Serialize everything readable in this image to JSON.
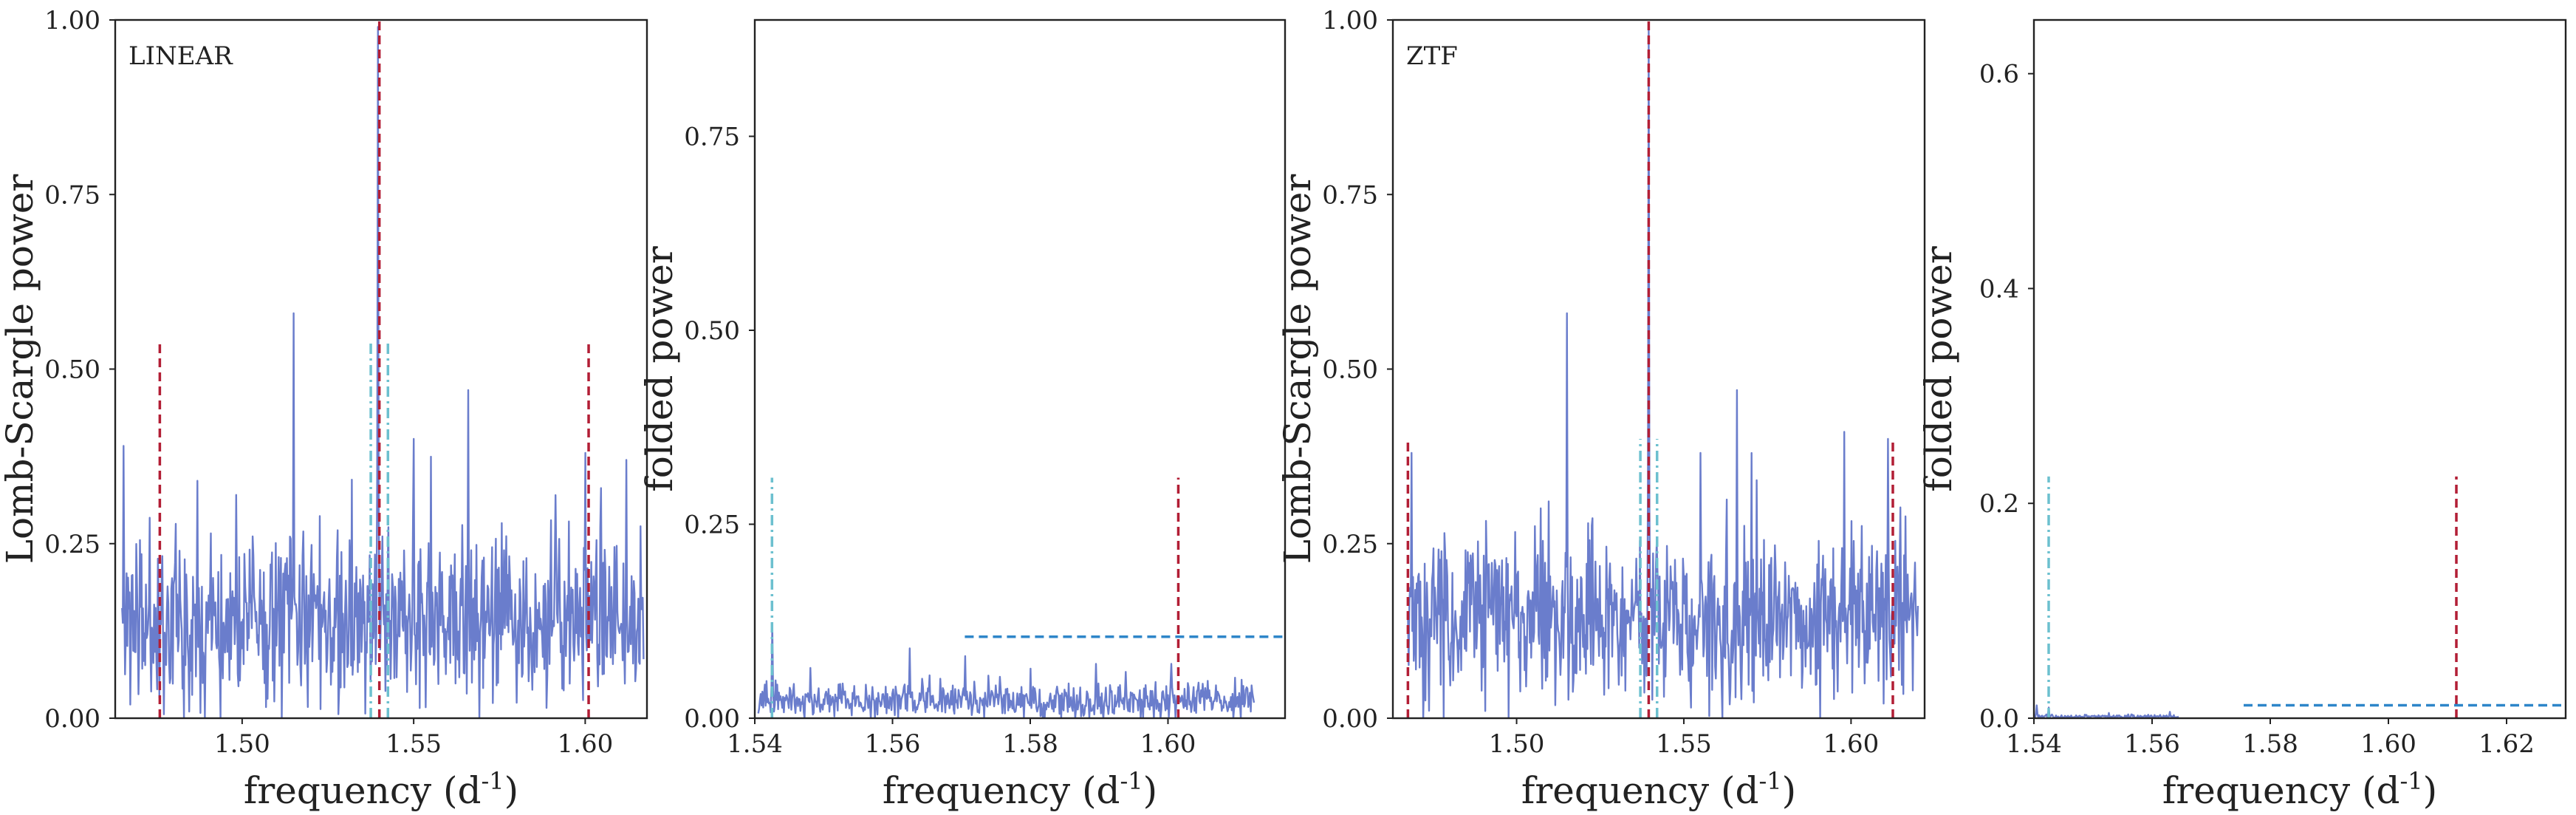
{
  "chart_data": [
    {
      "type": "line",
      "panel_label": "LINEAR",
      "xlabel": "frequency (d$^{-1}$)",
      "ylabel": "Lomb-Scargle power",
      "xlim": [
        1.463,
        1.618
      ],
      "ylim": [
        0,
        1.0
      ],
      "xticks": [
        1.5,
        1.55,
        1.6
      ],
      "xtick_labels": [
        "1.50",
        "1.55",
        "1.60"
      ],
      "yticks": [
        0,
        0.25,
        0.5,
        0.75,
        1.0
      ],
      "ytick_labels": [
        "0.00",
        "0.25",
        "0.50",
        "0.75",
        "1.00"
      ],
      "grid": false,
      "series": [
        {
          "values": {
            "x_range": [
              1.465,
              1.617
            ],
            "base": 0.14,
            "noise": 0.085,
            "n": 700,
            "seed": 11,
            "peaks": [
              [
                1.4655,
                0.39
              ],
              [
                1.515,
                0.58
              ],
              [
                1.5395,
                0.99
              ],
              [
                1.566,
                0.47
              ],
              [
                1.6,
                0.38
              ],
              [
                1.612,
                0.37
              ],
              [
                1.487,
                0.34
              ],
              [
                1.55,
                0.4
              ]
            ]
          },
          "color": "#6a7dcc"
        }
      ],
      "vlines": [
        {
          "x": 1.54,
          "y0": 0.0,
          "y1": 1.0,
          "style": "dashed",
          "color": "#b21e35"
        },
        {
          "x": 1.476,
          "y0": 0.0,
          "y1": 0.54,
          "style": "dashed",
          "color": "#b21e35"
        },
        {
          "x": 1.601,
          "y0": 0.0,
          "y1": 0.54,
          "style": "dashed",
          "color": "#b21e35"
        },
        {
          "x": 1.5375,
          "y0": 0.0,
          "y1": 0.54,
          "style": "dashdot",
          "color": "#6cc0cf"
        },
        {
          "x": 1.5425,
          "y0": 0.0,
          "y1": 0.54,
          "style": "dashdot",
          "color": "#6cc0cf"
        }
      ]
    },
    {
      "type": "line",
      "xlabel": "frequency (d$^{-1}$)",
      "ylabel": "folded power",
      "xlim": [
        1.54,
        1.617
      ],
      "ylim": [
        0,
        0.9
      ],
      "xticks": [
        1.54,
        1.56,
        1.58,
        1.6
      ],
      "xtick_labels": [
        "1.54",
        "1.56",
        "1.58",
        "1.60"
      ],
      "yticks": [
        0,
        0.25,
        0.5,
        0.75
      ],
      "ytick_labels": [
        "0.00",
        "0.25",
        "0.50",
        "0.75"
      ],
      "grid": false,
      "series": [
        {
          "values": {
            "x_range": [
              1.5405,
              1.6125
            ],
            "base": 0.022,
            "noise": 0.016,
            "n": 600,
            "seed": 23,
            "peaks": [
              [
                1.5425,
                0.12
              ],
              [
                1.5625,
                0.09
              ],
              [
                1.5705,
                0.08
              ],
              [
                1.6005,
                0.07
              ],
              [
                1.5895,
                0.07
              ]
            ]
          },
          "color": "#6a7dcc"
        }
      ],
      "hlines": [
        {
          "y": 0.105,
          "x0": 1.5705,
          "x1": 1.617,
          "style": "dashed",
          "color": "#2e86c9"
        }
      ],
      "vlines": [
        {
          "x": 1.6015,
          "y0": 0.0,
          "y1": 0.31,
          "style": "dashed",
          "color": "#b21e35"
        },
        {
          "x": 1.5425,
          "y0": 0.0,
          "y1": 0.31,
          "style": "dashdot",
          "color": "#6cc0cf"
        }
      ]
    },
    {
      "type": "line",
      "panel_label": "ZTF",
      "xlabel": "frequency (d$^{-1}$)",
      "ylabel": "Lomb-Scargle power",
      "xlim": [
        1.463,
        1.622
      ],
      "ylim": [
        0,
        1.0
      ],
      "xticks": [
        1.5,
        1.55,
        1.6
      ],
      "xtick_labels": [
        "1.50",
        "1.55",
        "1.60"
      ],
      "yticks": [
        0,
        0.25,
        0.5,
        0.75,
        1.0
      ],
      "ytick_labels": [
        "0.00",
        "0.25",
        "0.50",
        "0.75",
        "1.00"
      ],
      "grid": false,
      "series": [
        {
          "values": {
            "x_range": [
              1.4675,
              1.62
            ],
            "base": 0.14,
            "noise": 0.085,
            "n": 700,
            "seed": 37,
            "peaks": [
              [
                1.4685,
                0.38
              ],
              [
                1.515,
                0.58
              ],
              [
                1.5395,
                0.99
              ],
              [
                1.566,
                0.47
              ],
              [
                1.598,
                0.41
              ],
              [
                1.611,
                0.4
              ],
              [
                1.555,
                0.38
              ]
            ]
          },
          "color": "#6a7dcc"
        }
      ],
      "vlines": [
        {
          "x": 1.5395,
          "y0": 0.0,
          "y1": 1.0,
          "style": "dashed",
          "color": "#b21e35"
        },
        {
          "x": 1.4675,
          "y0": 0.0,
          "y1": 0.4,
          "style": "dashed",
          "color": "#b21e35"
        },
        {
          "x": 1.6125,
          "y0": 0.0,
          "y1": 0.4,
          "style": "dashed",
          "color": "#b21e35"
        },
        {
          "x": 1.537,
          "y0": 0.0,
          "y1": 0.4,
          "style": "dashdot",
          "color": "#6cc0cf"
        },
        {
          "x": 1.542,
          "y0": 0.0,
          "y1": 0.4,
          "style": "dashdot",
          "color": "#6cc0cf"
        }
      ]
    },
    {
      "type": "line",
      "xlabel": "frequency (d$^{-1}$)",
      "ylabel": "folded power",
      "xlim": [
        1.54,
        1.63
      ],
      "ylim": [
        0,
        0.65
      ],
      "xticks": [
        1.54,
        1.56,
        1.58,
        1.6,
        1.62
      ],
      "xtick_labels": [
        "1.54",
        "1.56",
        "1.58",
        "1.60",
        "1.62"
      ],
      "yticks": [
        0,
        0.2,
        0.4,
        0.6
      ],
      "ytick_labels": [
        "0.0",
        "0.2",
        "0.4",
        "0.6"
      ],
      "grid": false,
      "series": [
        {
          "values": {
            "x_range": [
              1.5402,
              1.5645
            ],
            "base": 0.0015,
            "noise": 0.0012,
            "n": 180,
            "seed": 53,
            "peaks": [
              [
                1.5405,
                0.012
              ],
              [
                1.5425,
                0.01
              ],
              [
                1.563,
                0.006
              ]
            ]
          },
          "color": "#6a7dcc"
        }
      ],
      "hlines": [
        {
          "y": 0.012,
          "x0": 1.5755,
          "x1": 1.63,
          "style": "dashed",
          "color": "#2e86c9"
        }
      ],
      "vlines": [
        {
          "x": 1.6115,
          "y0": 0.0,
          "y1": 0.225,
          "style": "dashed",
          "color": "#b21e35"
        },
        {
          "x": 1.5425,
          "y0": 0.0,
          "y1": 0.225,
          "style": "dashdot",
          "color": "#6cc0cf"
        }
      ]
    }
  ]
}
